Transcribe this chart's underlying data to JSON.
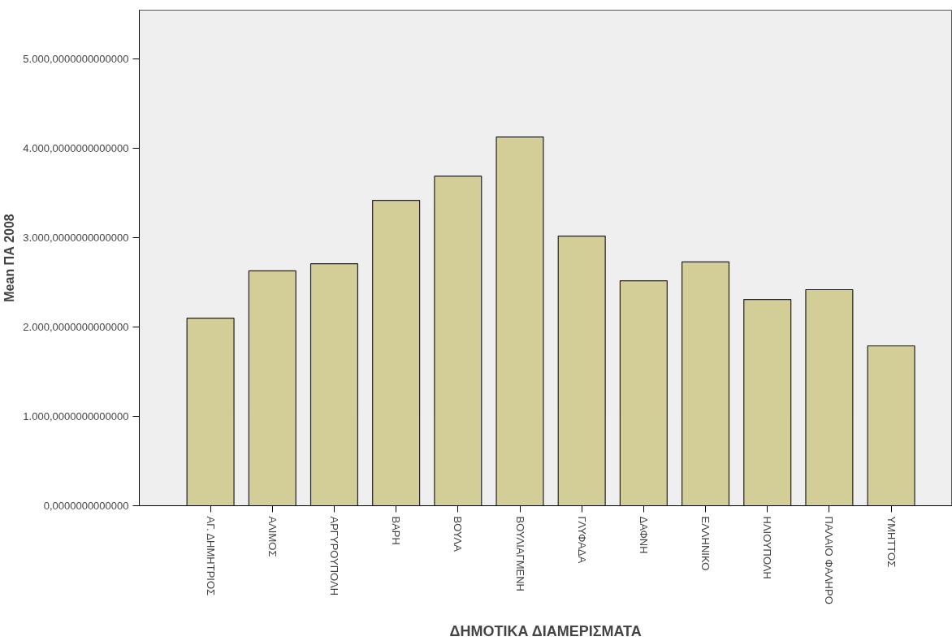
{
  "chart_data": {
    "type": "bar",
    "xlabel": "ΔΗΜΟΤΙΚΑ ΔΙΑΜΕΡΙΣΜΑΤΑ",
    "ylabel": "Mean ΠΑ 2008",
    "categories": [
      "ΑΓ. ΔΗΜΗΤΡΙΟΣ",
      "ΑΛΙΜΟΣ",
      "ΑΡΓΥΡΟΥΠΟΛΗ",
      "ΒΑΡΗ",
      "ΒΟΥΛΑ",
      "ΒΟΥΛΙΑΓΜΕΝΗ",
      "ΓΛΥΦΑΔΑ",
      "ΔΑΦΝΗ",
      "ΕΛΛΗΝΙΚΟ",
      "ΗΛΙΟΥΠΟΛΗ",
      "ΠΑΛΑΙΟ ΦΑΛΗΡΟ",
      "ΥΜΗΤΤΟΣ"
    ],
    "values": [
      2100,
      2630,
      2710,
      3420,
      3690,
      4130,
      3020,
      2520,
      2730,
      2310,
      2420,
      1790
    ],
    "color": "#d3cd97",
    "ylim": [
      0,
      5550
    ],
    "yticks": [
      {
        "value": 0,
        "label": "0,0000000000000"
      },
      {
        "value": 1000,
        "label": "1.000,0000000000000"
      },
      {
        "value": 2000,
        "label": "2.000,0000000000000"
      },
      {
        "value": 3000,
        "label": "3.000,0000000000000"
      },
      {
        "value": 4000,
        "label": "4.000,0000000000000"
      },
      {
        "value": 5000,
        "label": "5.000,0000000000000"
      }
    ]
  }
}
